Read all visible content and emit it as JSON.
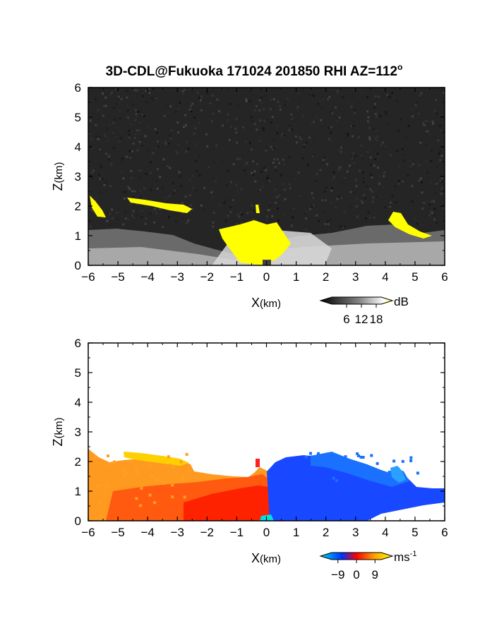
{
  "figure": {
    "title": "3D-CDL@Fukuoka 171024 201850 RHI AZ=112",
    "title_degree": "o"
  },
  "chart_data": [
    {
      "type": "heatmap",
      "panel": "snr",
      "xlabel_main": "X",
      "xlabel_unit": "(km)",
      "ylabel_main": "Z",
      "ylabel_unit": "(km)",
      "xlim": [
        -6,
        6
      ],
      "ylim": [
        0,
        6
      ],
      "xticks": [
        -6,
        -5,
        -4,
        -3,
        -2,
        -1,
        0,
        1,
        2,
        3,
        4,
        5,
        6
      ],
      "yticks": [
        0,
        1,
        2,
        3,
        4,
        5,
        6
      ],
      "colorbar": {
        "unit": "dB",
        "ticks": [
          6,
          12,
          18
        ],
        "range": [
          0,
          20
        ],
        "colors": [
          "#000000",
          "#ffffff",
          "#ffff00"
        ]
      },
      "features": [
        {
          "kind": "surface_layer",
          "x": [
            -6,
            6
          ],
          "top_km": [
            1.2,
            1.2,
            1.05,
            0.9,
            0.65,
            0.95,
            1.05,
            1.1,
            1.2,
            1.15,
            1.0,
            1.1,
            1.2
          ]
        },
        {
          "kind": "yellow_core",
          "x": [
            -1.7,
            1.0
          ],
          "z": [
            0,
            1.55
          ]
        },
        {
          "kind": "yellow_layer",
          "x": [
            -4.7,
            -2.6
          ],
          "z": [
            1.9,
            2.3
          ]
        },
        {
          "kind": "yellow_layer",
          "x": [
            -6,
            -5.6
          ],
          "z": [
            1.6,
            2.4
          ]
        },
        {
          "kind": "yellow_layer",
          "x": [
            4.0,
            5.8
          ],
          "z": [
            0.95,
            1.8
          ]
        }
      ]
    },
    {
      "type": "heatmap",
      "panel": "velocity",
      "xlabel_main": "X",
      "xlabel_unit": "(km)",
      "ylabel_main": "Z",
      "ylabel_unit": "(km)",
      "xlim": [
        -6,
        6
      ],
      "ylim": [
        0,
        6
      ],
      "xticks": [
        -6,
        -5,
        -4,
        -3,
        -2,
        -1,
        0,
        1,
        2,
        3,
        4,
        5,
        6
      ],
      "yticks": [
        0,
        1,
        2,
        3,
        4,
        5,
        6
      ],
      "colorbar": {
        "unit": "ms",
        "unit_exp": "-1",
        "ticks": [
          -9,
          0,
          9
        ],
        "range": [
          -12,
          12
        ],
        "colors": [
          "#00d8e8",
          "#0030ff",
          "#ff0000",
          "#ffa000",
          "#ffff00"
        ]
      },
      "features": [
        {
          "kind": "positive_region",
          "x": [
            -6,
            0.1
          ],
          "z": [
            0,
            2.4
          ],
          "velocity_ms": 6
        },
        {
          "kind": "negative_region",
          "x": [
            0,
            6
          ],
          "z": [
            0,
            2.3
          ],
          "velocity_ms": -6
        },
        {
          "kind": "elevated_layer",
          "x": [
            -4.9,
            -2.6
          ],
          "z": [
            1.9,
            2.4
          ],
          "velocity_ms": 10
        },
        {
          "kind": "elevated_layer",
          "x": [
            4.0,
            4.7
          ],
          "z": [
            1.2,
            1.8
          ],
          "velocity_ms": -9
        }
      ]
    }
  ]
}
